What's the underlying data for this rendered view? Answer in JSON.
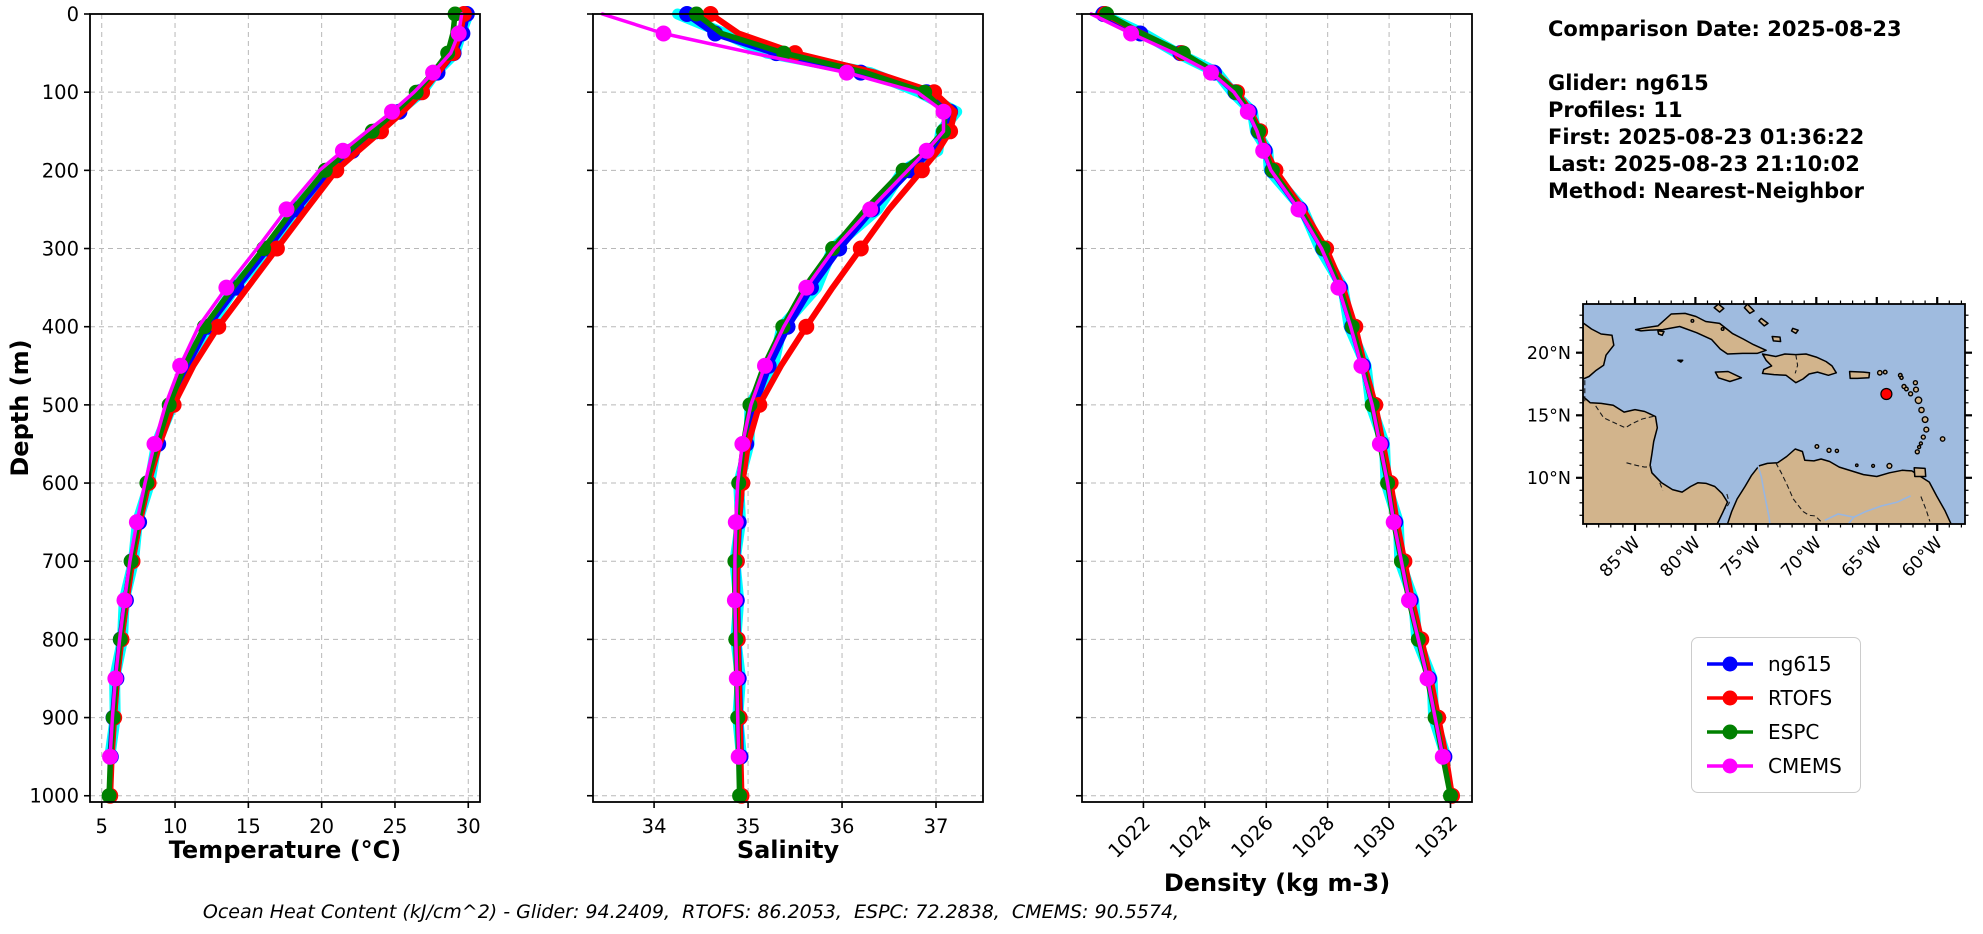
{
  "info_panel": {
    "comparison_date": "Comparison Date: 2025-08-23",
    "glider": "Glider: ng615",
    "profiles": "Profiles: 11",
    "first": "First: 2025-08-23 01:36:22",
    "last": "Last: 2025-08-23 21:10:02",
    "method": "Method: Nearest-Neighbor"
  },
  "caption": "Ocean Heat Content (kJ/cm^2) - Glider: 94.2409,  RTOFS: 86.2053,  ESPC: 72.2838,  CMEMS: 90.5574,",
  "legend": {
    "entries": [
      {
        "label": "ng615",
        "color": "#0000ff"
      },
      {
        "label": "RTOFS",
        "color": "#ff0000"
      },
      {
        "label": "ESPC",
        "color": "#008000"
      },
      {
        "label": "CMEMS",
        "color": "#ff00ff"
      }
    ]
  },
  "map": {
    "lon_tick_labels": [
      "85°W",
      "80°W",
      "75°W",
      "70°W",
      "65°W",
      "60°W"
    ],
    "lon_tick_values": [
      -85,
      -80,
      -75,
      -70,
      -65,
      -60
    ],
    "lat_tick_labels": [
      "20°N",
      "15°N",
      "10°N"
    ],
    "lat_tick_values": [
      20,
      15,
      10
    ],
    "extent": {
      "lon_min": -89.3,
      "lon_max": -57.7,
      "lat_min": 6.3,
      "lat_max": 23.9
    },
    "marker": {
      "lon": -64.2,
      "lat": 16.7,
      "color": "#ff0000"
    },
    "ocean_color": "#9fbbdf",
    "land_color": "#d2b48c",
    "river_color": "#98b6e1"
  },
  "chart_data": [
    {
      "type": "line",
      "xlabel": "Temperature (°C)",
      "ylabel": "Depth (m)",
      "xlim": [
        4.2,
        30.8
      ],
      "ylim": [
        0,
        1008
      ],
      "xticks": [
        5,
        10,
        15,
        20,
        25,
        30
      ],
      "yticks": [
        0,
        100,
        200,
        300,
        400,
        500,
        600,
        700,
        800,
        900,
        1000
      ],
      "grid": true,
      "legend_position": "outside-right",
      "depths": [
        0,
        25,
        50,
        75,
        100,
        125,
        150,
        175,
        200,
        250,
        300,
        350,
        400,
        450,
        500,
        550,
        600,
        650,
        700,
        750,
        800,
        850,
        900,
        950,
        1000
      ],
      "series": [
        {
          "name": "glider-raw",
          "color": "#00ffff",
          "lw": 11,
          "marker": 0,
          "markevery": 1,
          "markoffset": 0,
          "values": [
            30.0,
            29.5,
            29.1,
            27.78,
            26.82,
            25.18,
            23.82,
            21.98,
            20.62,
            18.18,
            16.42,
            14.08,
            12.32,
            10.68,
            9.82,
            8.73,
            8.27,
            7.43,
            7.17,
            6.53,
            6.42,
            5.88,
            5.92,
            5.55,
            null
          ]
        },
        {
          "name": "ng615",
          "color": "#0000ff",
          "lw": 7,
          "marker": 8,
          "markevery": 1,
          "markoffset": 0,
          "values": [
            29.9,
            29.6,
            29.0,
            27.9,
            26.7,
            25.3,
            23.7,
            22.1,
            20.5,
            18.3,
            16.3,
            14.2,
            12.2,
            10.8,
            9.7,
            8.85,
            8.15,
            7.55,
            7.05,
            6.65,
            6.3,
            6.0,
            5.8,
            5.62,
            null
          ]
        },
        {
          "name": "RTOFS",
          "color": "#ff0000",
          "lw": 6,
          "marker": 8,
          "markevery": 2,
          "markoffset": 0,
          "values": [
            29.7,
            29.45,
            28.95,
            27.95,
            26.85,
            25.55,
            24.05,
            22.5,
            21.0,
            18.95,
            16.95,
            14.95,
            12.95,
            11.25,
            9.9,
            8.95,
            8.2,
            7.6,
            7.1,
            6.7,
            6.35,
            6.05,
            5.85,
            5.68,
            5.58
          ]
        },
        {
          "name": "ESPC",
          "color": "#008000",
          "lw": 5.5,
          "marker": 7.5,
          "markevery": 2,
          "markoffset": 0,
          "values": [
            29.1,
            28.95,
            28.6,
            27.6,
            26.45,
            25.05,
            23.45,
            21.85,
            20.25,
            18.05,
            16.05,
            13.95,
            12.0,
            10.65,
            9.6,
            8.78,
            8.08,
            7.5,
            7.0,
            6.6,
            6.27,
            5.98,
            5.78,
            5.6,
            5.5
          ]
        },
        {
          "name": "CMEMS",
          "color": "#ff00ff",
          "lw": 3.5,
          "marker": 8,
          "markevery": 2,
          "markoffset": 1,
          "values": [
            29.55,
            29.35,
            28.8,
            27.6,
            26.3,
            24.8,
            23.1,
            21.45,
            19.85,
            17.6,
            15.6,
            13.5,
            11.6,
            10.35,
            9.35,
            8.6,
            7.95,
            7.4,
            6.92,
            6.55,
            6.22,
            5.93,
            5.73,
            5.57,
            null
          ]
        }
      ]
    },
    {
      "type": "line",
      "xlabel": "Salinity",
      "ylabel": "Depth (m)",
      "xlim": [
        33.35,
        37.5
      ],
      "ylim": [
        0,
        1008
      ],
      "xticks": [
        34,
        35,
        36,
        37
      ],
      "yticks": [
        0,
        100,
        200,
        300,
        400,
        500,
        600,
        700,
        800,
        900,
        1000
      ],
      "grid": true,
      "depths": [
        0,
        25,
        50,
        75,
        100,
        125,
        150,
        175,
        200,
        250,
        300,
        350,
        400,
        450,
        500,
        550,
        600,
        650,
        700,
        750,
        800,
        850,
        900,
        950,
        1000
      ],
      "series": [
        {
          "name": "glider-raw",
          "color": "#00ffff",
          "lw": 11,
          "marker": 0,
          "markevery": 1,
          "markoffset": 0,
          "values": [
            34.25,
            34.75,
            35.2,
            36.3,
            36.82,
            37.22,
            37.05,
            37.02,
            36.65,
            36.38,
            35.9,
            35.73,
            35.36,
            35.27,
            35.02,
            35.01,
            34.9,
            34.92,
            34.86,
            34.9,
            34.87,
            34.92,
            34.89,
            34.93,
            null
          ]
        },
        {
          "name": "ng615",
          "color": "#0000ff",
          "lw": 7,
          "marker": 8,
          "markevery": 1,
          "markoffset": 0,
          "values": [
            34.35,
            34.65,
            35.3,
            36.2,
            36.9,
            37.15,
            37.12,
            36.95,
            36.72,
            36.32,
            35.97,
            35.67,
            35.42,
            35.22,
            35.07,
            34.98,
            34.93,
            34.9,
            34.88,
            34.88,
            34.89,
            34.9,
            34.91,
            34.92,
            null
          ]
        },
        {
          "name": "RTOFS",
          "color": "#ff0000",
          "lw": 6,
          "marker": 8,
          "markevery": 2,
          "markoffset": 0,
          "values": [
            34.6,
            34.9,
            35.5,
            36.35,
            36.98,
            37.2,
            37.15,
            37.02,
            36.85,
            36.5,
            36.2,
            35.9,
            35.62,
            35.35,
            35.12,
            35.0,
            34.94,
            34.9,
            34.88,
            34.88,
            34.89,
            34.9,
            34.91,
            34.92,
            34.93
          ]
        },
        {
          "name": "ESPC",
          "color": "#008000",
          "lw": 5.5,
          "marker": 7.5,
          "markevery": 2,
          "markoffset": 0,
          "values": [
            34.45,
            34.72,
            35.38,
            36.25,
            36.88,
            37.1,
            37.08,
            36.9,
            36.65,
            36.25,
            35.9,
            35.6,
            35.37,
            35.17,
            35.02,
            34.95,
            34.9,
            34.88,
            34.86,
            34.86,
            34.87,
            34.88,
            34.89,
            34.9,
            34.91
          ]
        },
        {
          "name": "CMEMS",
          "color": "#ff00ff",
          "lw": 3.5,
          "marker": 8,
          "markevery": 2,
          "markoffset": 1,
          "values": [
            33.45,
            34.1,
            35.05,
            36.05,
            36.8,
            37.08,
            37.08,
            36.9,
            36.7,
            36.3,
            35.92,
            35.62,
            35.38,
            35.18,
            35.03,
            34.94,
            34.89,
            34.87,
            34.86,
            34.86,
            34.87,
            34.88,
            34.89,
            34.9,
            null
          ]
        }
      ]
    },
    {
      "type": "line",
      "xlabel": "Density (kg m-3)",
      "ylabel": "Depth (m)",
      "xlim": [
        1020.0,
        1032.7
      ],
      "ylim": [
        0,
        1008
      ],
      "xticks": [
        1022,
        1024,
        1026,
        1028,
        1030,
        1032
      ],
      "yticks": [
        0,
        100,
        200,
        300,
        400,
        500,
        600,
        700,
        800,
        900,
        1000
      ],
      "grid": true,
      "depths": [
        0,
        25,
        50,
        75,
        100,
        125,
        150,
        175,
        200,
        250,
        300,
        350,
        400,
        450,
        500,
        550,
        600,
        650,
        700,
        750,
        800,
        850,
        900,
        950,
        1000
      ],
      "series": [
        {
          "name": "glider-raw",
          "color": "#00ffff",
          "lw": 11,
          "marker": 0,
          "markevery": 1,
          "markoffset": 0,
          "values": [
            1020.6,
            1022.0,
            1023.1,
            1024.4,
            1024.9,
            1025.55,
            1025.65,
            1026.05,
            1026.1,
            1027.2,
            1027.75,
            1028.5,
            1028.7,
            1029.25,
            1029.4,
            1029.85,
            1029.9,
            1030.3,
            1030.35,
            1030.8,
            1030.9,
            1031.4,
            1031.45,
            1031.85,
            null
          ]
        },
        {
          "name": "ng615",
          "color": "#0000ff",
          "lw": 7,
          "marker": 8,
          "markevery": 1,
          "markoffset": 0,
          "values": [
            1020.7,
            1021.9,
            1023.2,
            1024.3,
            1025.0,
            1025.45,
            1025.75,
            1025.95,
            1026.2,
            1027.1,
            1027.85,
            1028.4,
            1028.8,
            1029.15,
            1029.5,
            1029.75,
            1030.0,
            1030.2,
            1030.45,
            1030.7,
            1031.0,
            1031.3,
            1031.55,
            1031.8,
            null
          ]
        },
        {
          "name": "RTOFS",
          "color": "#ff0000",
          "lw": 6,
          "marker": 8,
          "markevery": 2,
          "markoffset": 0,
          "values": [
            1020.75,
            1021.95,
            1023.25,
            1024.35,
            1025.05,
            1025.5,
            1025.8,
            1026.0,
            1026.3,
            1027.2,
            1027.95,
            1028.5,
            1028.9,
            1029.2,
            1029.55,
            1029.8,
            1030.05,
            1030.25,
            1030.5,
            1030.75,
            1031.05,
            1031.35,
            1031.6,
            1031.85,
            1032.05
          ]
        },
        {
          "name": "ESPC",
          "color": "#008000",
          "lw": 5.5,
          "marker": 7.5,
          "markevery": 2,
          "markoffset": 0,
          "values": [
            1020.8,
            1021.95,
            1023.3,
            1024.35,
            1025.0,
            1025.45,
            1025.75,
            1025.95,
            1026.2,
            1027.1,
            1027.85,
            1028.4,
            1028.8,
            1029.15,
            1029.45,
            1029.7,
            1029.95,
            1030.15,
            1030.4,
            1030.65,
            1030.95,
            1031.25,
            1031.5,
            1031.75,
            1032.0
          ]
        },
        {
          "name": "CMEMS",
          "color": "#ff00ff",
          "lw": 3.5,
          "marker": 8,
          "markevery": 2,
          "markoffset": 1,
          "values": [
            1020.3,
            1021.6,
            1023.0,
            1024.2,
            1024.95,
            1025.4,
            1025.7,
            1025.9,
            1026.15,
            1027.05,
            1027.8,
            1028.35,
            1028.75,
            1029.1,
            1029.45,
            1029.7,
            1029.95,
            1030.15,
            1030.4,
            1030.65,
            1030.95,
            1031.25,
            1031.5,
            1031.75,
            null
          ]
        }
      ]
    }
  ]
}
